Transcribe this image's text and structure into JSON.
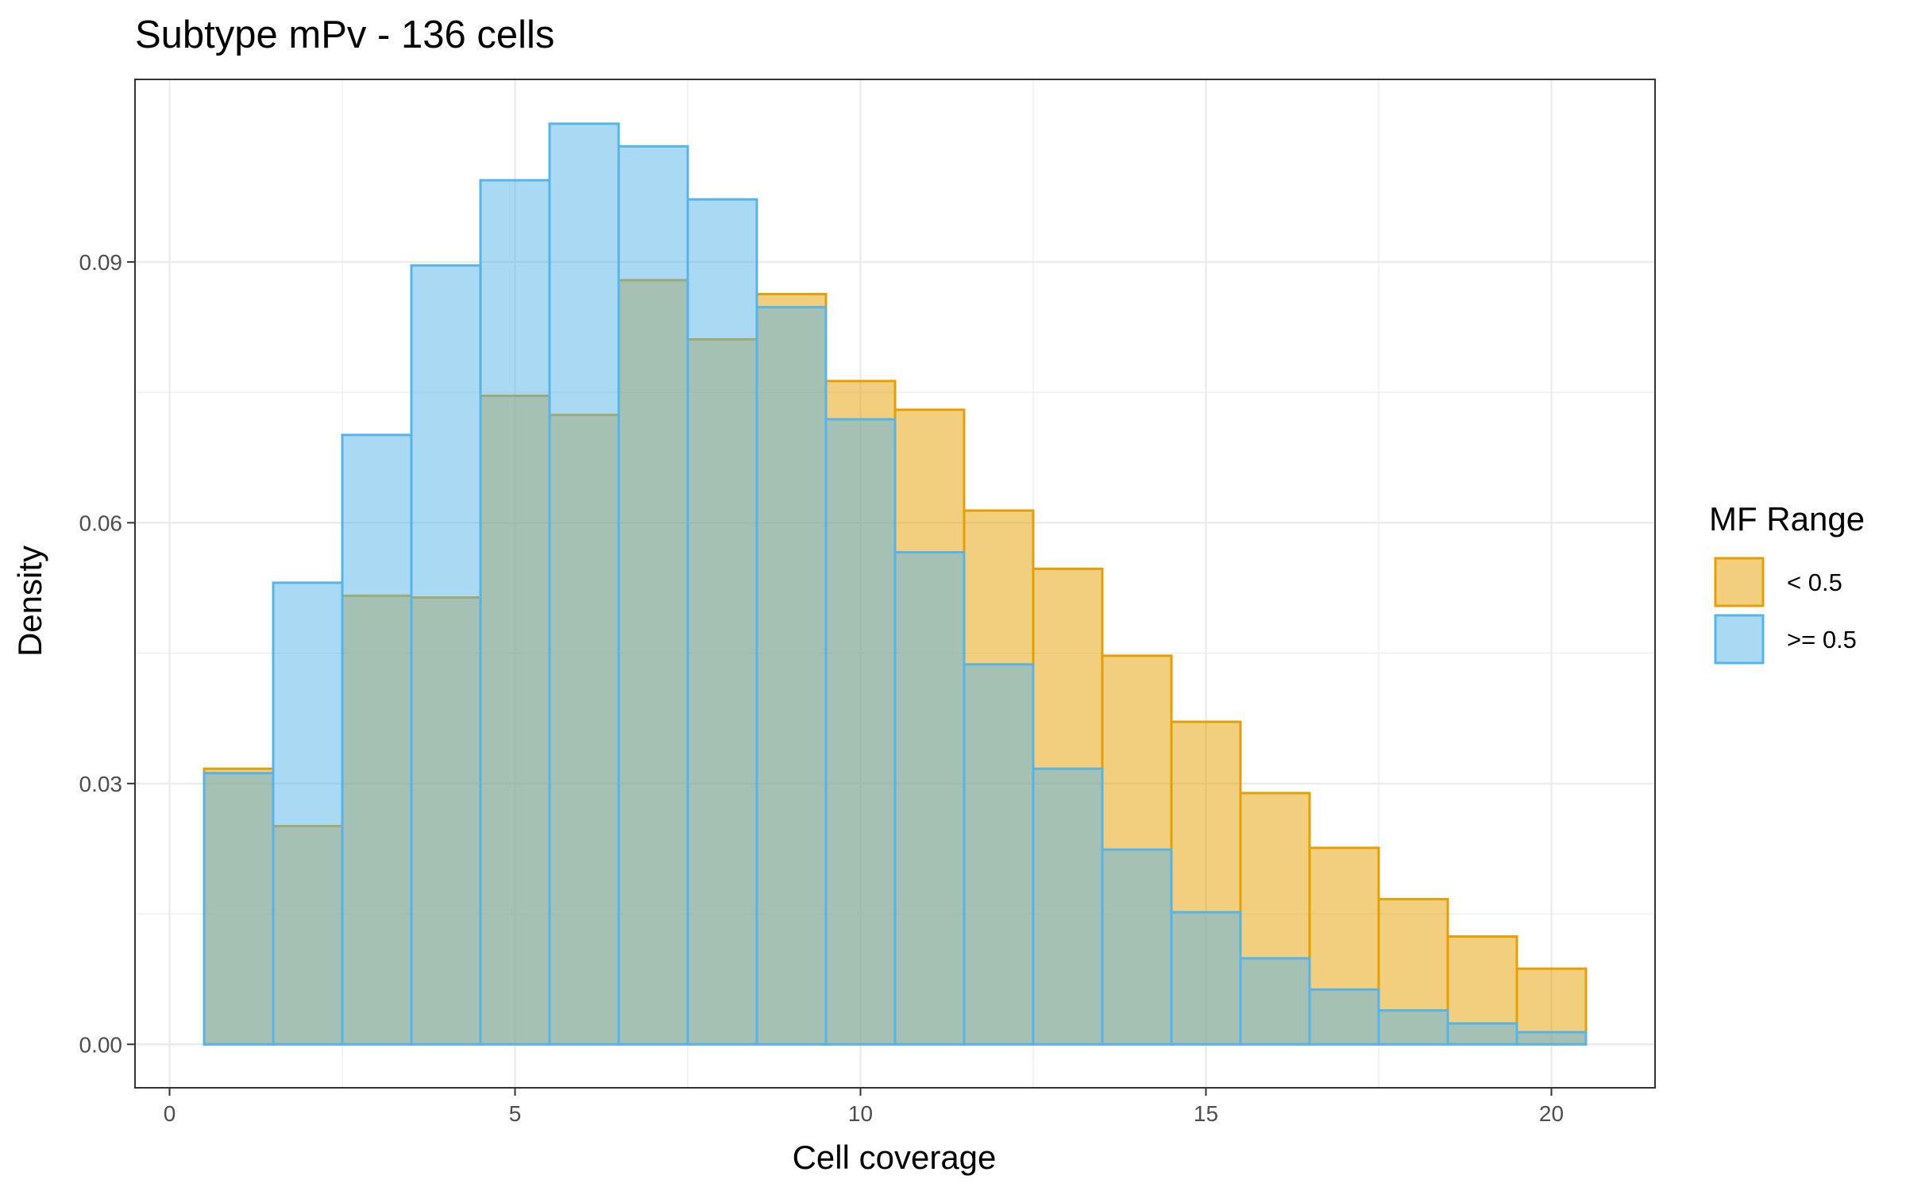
{
  "chart_data": {
    "type": "bar",
    "title": "Subtype mPv - 136 cells",
    "xlabel": "Cell coverage",
    "ylabel": "Density",
    "xlim": [
      -0.5,
      21.5
    ],
    "ylim": [
      -0.005,
      0.111
    ],
    "x_ticks": [
      0,
      5,
      10,
      15,
      20
    ],
    "x_tick_labels": [
      "0",
      "5",
      "10",
      "15",
      "20"
    ],
    "y_ticks": [
      0.0,
      0.03,
      0.06,
      0.09
    ],
    "y_tick_labels": [
      "0.00",
      "0.03",
      "0.06",
      "0.09"
    ],
    "grid": true,
    "legend": {
      "title": "MF Range",
      "position": "right"
    },
    "bin_width": 1,
    "x": [
      1,
      2,
      3,
      4,
      5,
      6,
      7,
      8,
      9,
      10,
      11,
      12,
      13,
      14,
      15,
      16,
      17,
      18,
      19,
      20
    ],
    "series": [
      {
        "name": "< 0.5",
        "fill": "#E69F00",
        "values": [
          0.0317,
          0.0251,
          0.0516,
          0.0514,
          0.0746,
          0.0724,
          0.0879,
          0.0811,
          0.0863,
          0.0763,
          0.073,
          0.0614,
          0.0547,
          0.0447,
          0.0371,
          0.0289,
          0.0226,
          0.0167,
          0.0124,
          0.0087
        ]
      },
      {
        "name": ">= 0.5",
        "fill": "#56B4E9",
        "values": [
          0.0312,
          0.0531,
          0.0701,
          0.0896,
          0.0994,
          0.1059,
          0.1033,
          0.0972,
          0.0848,
          0.0719,
          0.0566,
          0.0437,
          0.0317,
          0.0224,
          0.0152,
          0.0099,
          0.0063,
          0.0039,
          0.0024,
          0.0014
        ]
      }
    ]
  }
}
